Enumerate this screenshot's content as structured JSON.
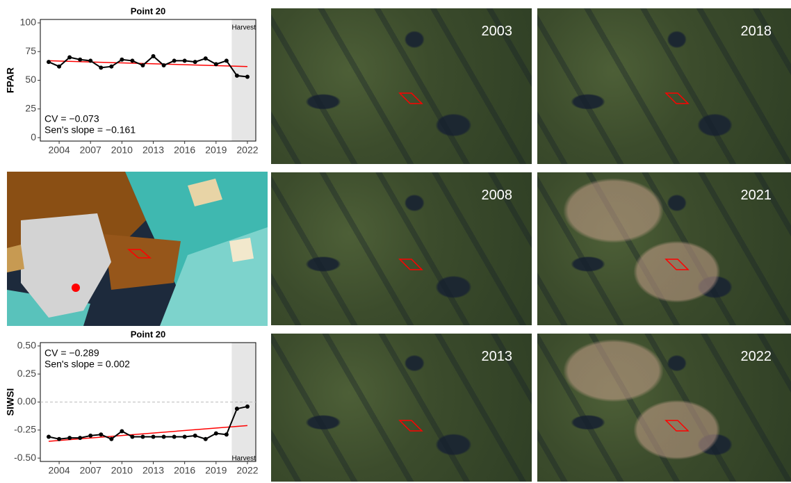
{
  "chart_data": [
    {
      "type": "line",
      "title": "Point 20",
      "y_label": "FPAR",
      "x": [
        2003,
        2004,
        2005,
        2006,
        2007,
        2008,
        2009,
        2010,
        2011,
        2012,
        2013,
        2014,
        2015,
        2016,
        2017,
        2018,
        2019,
        2020,
        2021,
        2022
      ],
      "series": [
        {
          "color": "#000000",
          "values": [
            66,
            62,
            70,
            68,
            67,
            61,
            62,
            68,
            67,
            63,
            71,
            63,
            67,
            67,
            66,
            69,
            64,
            67,
            54,
            53
          ]
        }
      ],
      "trend": {
        "color": "#ff0000",
        "x": [
          2003,
          2022
        ],
        "values": [
          67,
          62
        ]
      },
      "shade": {
        "label": "Harvest",
        "xlim": [
          2020.5,
          2022.8
        ]
      },
      "annotations": [
        "CV = −0.073",
        "Sen's slope = −0.161"
      ],
      "xlim": [
        2002.2,
        2022.8
      ],
      "xticks": [
        2004,
        2007,
        2010,
        2013,
        2016,
        2019,
        2022
      ],
      "ylim": [
        -3,
        103
      ],
      "yticks": [
        0,
        25,
        50,
        75,
        100
      ]
    },
    {
      "type": "line",
      "title": "Point 20",
      "y_label": "SIWSI",
      "x": [
        2003,
        2004,
        2005,
        2006,
        2007,
        2008,
        2009,
        2010,
        2011,
        2012,
        2013,
        2014,
        2015,
        2016,
        2017,
        2018,
        2019,
        2020,
        2021,
        2022
      ],
      "series": [
        {
          "color": "#000000",
          "values": [
            -0.31,
            -0.33,
            -0.32,
            -0.32,
            -0.3,
            -0.29,
            -0.33,
            -0.26,
            -0.31,
            -0.31,
            -0.31,
            -0.31,
            -0.31,
            -0.31,
            -0.3,
            -0.33,
            -0.28,
            -0.29,
            -0.06,
            -0.04
          ]
        }
      ],
      "trend": {
        "color": "#ff0000",
        "x": [
          2003,
          2022
        ],
        "values": [
          -0.35,
          -0.21
        ]
      },
      "shade": {
        "label": "Harvest",
        "xlim": [
          2020.5,
          2022.8
        ]
      },
      "hline": 0,
      "annotations": [
        "CV = −0.289",
        "Sen's slope = 0.002"
      ],
      "xlim": [
        2002.2,
        2022.8
      ],
      "xticks": [
        2004,
        2007,
        2010,
        2013,
        2016,
        2019,
        2022
      ],
      "ylim": [
        -0.53,
        0.53
      ],
      "yticks": [
        {
          "value": 0.5,
          "label": "0.50"
        },
        {
          "value": 0.25,
          "label": "0.25"
        },
        {
          "value": 0,
          "label": "0.00"
        },
        {
          "value": -0.25,
          "label": "-0.25"
        },
        {
          "value": -0.5,
          "label": "-0.50"
        }
      ]
    }
  ],
  "image_panels": [
    "2003",
    "2018",
    "2008",
    "2021",
    "2013",
    "2022"
  ]
}
